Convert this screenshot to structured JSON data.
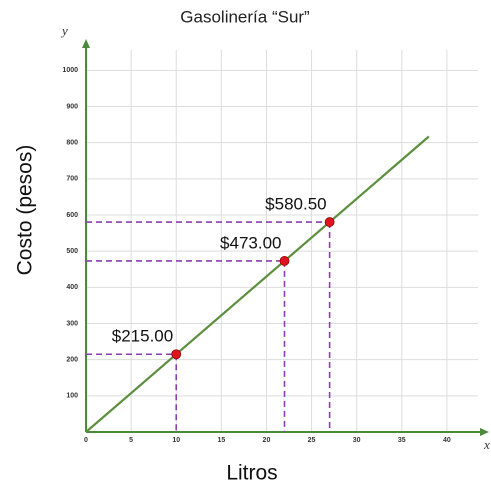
{
  "chart_data": {
    "type": "line",
    "title": "Gasolinería “Sur”",
    "x_label": "Litros",
    "y_label": "Costo (pesos)",
    "x_axis_letter": "x",
    "y_axis_letter": "y",
    "xlim": [
      0,
      44
    ],
    "ylim": [
      0,
      1070
    ],
    "xticks": [
      0,
      5,
      10,
      15,
      20,
      25,
      30,
      35,
      40
    ],
    "yticks": [
      100,
      200,
      300,
      400,
      500,
      600,
      700,
      800,
      900,
      1000
    ],
    "grid": true,
    "series": [
      {
        "kind": "line",
        "color": "#5b8f3e",
        "x": [
          0,
          38
        ],
        "values": [
          0,
          817
        ]
      },
      {
        "kind": "points",
        "color": "#e0141e",
        "guide_color": "#8a3fb0",
        "x": [
          10,
          22,
          27
        ],
        "values": [
          215,
          473,
          580.5
        ],
        "value_labels": [
          "$215.00",
          "$473.00",
          "$580.50"
        ]
      }
    ]
  }
}
